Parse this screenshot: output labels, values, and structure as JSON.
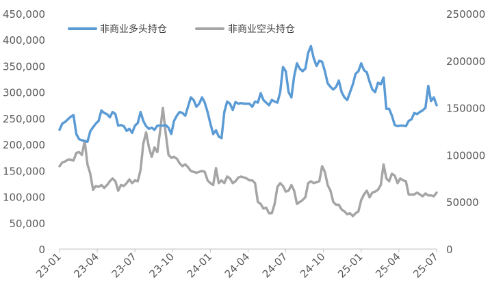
{
  "chart_data": {
    "type": "line",
    "title": "",
    "legend_position": "top-left",
    "grid": false,
    "x": {
      "tick_labels": [
        "23-01",
        "23-04",
        "23-07",
        "23-10",
        "24-01",
        "24-04",
        "24-07",
        "24-10",
        "25-01",
        "25-04",
        "25-07"
      ],
      "range": [
        0,
        135
      ]
    },
    "y_left": {
      "range": [
        0,
        450000
      ],
      "tick_labels": [
        "0",
        "50,000",
        "100,000",
        "150,000",
        "200,000",
        "250,000",
        "300,000",
        "350,000",
        "400,000",
        "450,000"
      ],
      "tick_values": [
        0,
        50000,
        100000,
        150000,
        200000,
        250000,
        300000,
        350000,
        400000,
        450000
      ]
    },
    "y_right": {
      "range": [
        0,
        250000
      ],
      "tick_labels": [
        "0",
        "50000",
        "100000",
        "150000",
        "200000",
        "250000"
      ],
      "tick_values": [
        0,
        50000,
        100000,
        150000,
        200000,
        250000
      ]
    },
    "series": [
      {
        "name": "非商业多头持仓",
        "axis": "left",
        "color": "#5B9BD5",
        "points": [
          [
            0,
            228000
          ],
          [
            1,
            240000
          ],
          [
            2,
            243000
          ],
          [
            3,
            248000
          ],
          [
            4,
            253000
          ],
          [
            5,
            256000
          ],
          [
            6,
            220000
          ],
          [
            7,
            210000
          ],
          [
            8,
            208000
          ],
          [
            9,
            207000
          ],
          [
            10,
            205000
          ],
          [
            11,
            225000
          ],
          [
            12,
            233000
          ],
          [
            13,
            240000
          ],
          [
            14,
            245000
          ],
          [
            15,
            265000
          ],
          [
            16,
            260000
          ],
          [
            17,
            258000
          ],
          [
            18,
            252000
          ],
          [
            19,
            262000
          ],
          [
            20,
            258000
          ],
          [
            21,
            236000
          ],
          [
            22,
            237000
          ],
          [
            23,
            235000
          ],
          [
            24,
            226000
          ],
          [
            25,
            230000
          ],
          [
            26,
            222000
          ],
          [
            27,
            236000
          ],
          [
            28,
            241000
          ],
          [
            29,
            262000
          ],
          [
            30,
            245000
          ],
          [
            31,
            235000
          ],
          [
            32,
            230000
          ],
          [
            33,
            232000
          ],
          [
            34,
            228000
          ],
          [
            35,
            236000
          ],
          [
            36,
            236000
          ],
          [
            37,
            236000
          ],
          [
            38,
            237000
          ],
          [
            39,
            232000
          ],
          [
            40,
            220000
          ],
          [
            41,
            245000
          ],
          [
            42,
            255000
          ],
          [
            43,
            262000
          ],
          [
            44,
            260000
          ],
          [
            45,
            255000
          ],
          [
            46,
            272000
          ],
          [
            47,
            290000
          ],
          [
            48,
            285000
          ],
          [
            49,
            272000
          ],
          [
            50,
            278000
          ],
          [
            51,
            290000
          ],
          [
            52,
            280000
          ],
          [
            53,
            262000
          ],
          [
            54,
            240000
          ],
          [
            55,
            220000
          ],
          [
            56,
            227000
          ],
          [
            57,
            215000
          ],
          [
            58,
            212000
          ],
          [
            59,
            262000
          ],
          [
            60,
            282000
          ],
          [
            61,
            278000
          ],
          [
            62,
            266000
          ],
          [
            63,
            281000
          ],
          [
            64,
            278000
          ],
          [
            65,
            279000
          ],
          [
            66,
            278000
          ],
          [
            67,
            278000
          ],
          [
            68,
            278000
          ],
          [
            69,
            272000
          ],
          [
            70,
            282000
          ],
          [
            71,
            280000
          ],
          [
            72,
            298000
          ],
          [
            73,
            285000
          ],
          [
            74,
            280000
          ],
          [
            75,
            275000
          ],
          [
            76,
            285000
          ],
          [
            77,
            282000
          ],
          [
            78,
            280000
          ],
          [
            79,
            300000
          ],
          [
            80,
            348000
          ],
          [
            81,
            340000
          ],
          [
            82,
            300000
          ],
          [
            83,
            290000
          ],
          [
            84,
            330000
          ],
          [
            85,
            355000
          ],
          [
            86,
            345000
          ],
          [
            87,
            340000
          ],
          [
            88,
            345000
          ],
          [
            89,
            375000
          ],
          [
            90,
            388000
          ],
          [
            91,
            365000
          ],
          [
            92,
            350000
          ],
          [
            93,
            360000
          ],
          [
            94,
            358000
          ],
          [
            95,
            340000
          ],
          [
            96,
            317000
          ],
          [
            97,
            310000
          ],
          [
            98,
            305000
          ],
          [
            99,
            310000
          ],
          [
            100,
            322000
          ],
          [
            101,
            300000
          ],
          [
            102,
            290000
          ],
          [
            103,
            285000
          ],
          [
            104,
            300000
          ],
          [
            105,
            315000
          ],
          [
            106,
            335000
          ],
          [
            107,
            340000
          ],
          [
            108,
            355000
          ],
          [
            109,
            342000
          ],
          [
            110,
            338000
          ],
          [
            111,
            320000
          ],
          [
            112,
            305000
          ],
          [
            113,
            300000
          ],
          [
            114,
            318000
          ],
          [
            115,
            315000
          ],
          [
            116,
            328000
          ],
          [
            117,
            268000
          ],
          [
            118,
            268000
          ],
          [
            119,
            255000
          ],
          [
            120,
            237000
          ],
          [
            121,
            235000
          ],
          [
            122,
            236000
          ],
          [
            123,
            236000
          ],
          [
            124,
            235000
          ],
          [
            125,
            245000
          ],
          [
            126,
            248000
          ],
          [
            127,
            260000
          ],
          [
            128,
            258000
          ],
          [
            129,
            262000
          ],
          [
            130,
            265000
          ],
          [
            131,
            270000
          ],
          [
            132,
            312000
          ],
          [
            133,
            283000
          ],
          [
            134,
            290000
          ],
          [
            135,
            275000
          ]
        ]
      },
      {
        "name": "非商业空头持仓",
        "axis": "right",
        "color": "#A5A5A5",
        "points": [
          [
            0,
            88000
          ],
          [
            1,
            92000
          ],
          [
            2,
            93000
          ],
          [
            3,
            95000
          ],
          [
            4,
            95000
          ],
          [
            5,
            94000
          ],
          [
            6,
            102000
          ],
          [
            7,
            103000
          ],
          [
            8,
            100000
          ],
          [
            9,
            115000
          ],
          [
            10,
            90000
          ],
          [
            11,
            80000
          ],
          [
            12,
            63000
          ],
          [
            13,
            67000
          ],
          [
            14,
            66000
          ],
          [
            15,
            68000
          ],
          [
            16,
            65000
          ],
          [
            17,
            68000
          ],
          [
            18,
            72000
          ],
          [
            19,
            75000
          ],
          [
            20,
            72000
          ],
          [
            21,
            62000
          ],
          [
            22,
            68000
          ],
          [
            23,
            67000
          ],
          [
            24,
            70000
          ],
          [
            25,
            74000
          ],
          [
            26,
            70000
          ],
          [
            27,
            73000
          ],
          [
            28,
            72000
          ],
          [
            29,
            84000
          ],
          [
            30,
            112000
          ],
          [
            31,
            124000
          ],
          [
            32,
            108000
          ],
          [
            33,
            98000
          ],
          [
            34,
            108000
          ],
          [
            35,
            103000
          ],
          [
            36,
            125000
          ],
          [
            37,
            150000
          ],
          [
            38,
            123000
          ],
          [
            39,
            100000
          ],
          [
            40,
            97000
          ],
          [
            41,
            98000
          ],
          [
            42,
            96000
          ],
          [
            43,
            91000
          ],
          [
            44,
            88000
          ],
          [
            45,
            90000
          ],
          [
            46,
            87000
          ],
          [
            47,
            83000
          ],
          [
            48,
            82000
          ],
          [
            49,
            81000
          ],
          [
            50,
            82000
          ],
          [
            51,
            83000
          ],
          [
            52,
            82000
          ],
          [
            53,
            73000
          ],
          [
            54,
            70000
          ],
          [
            55,
            68000
          ],
          [
            56,
            86000
          ],
          [
            57,
            70000
          ],
          [
            58,
            73000
          ],
          [
            59,
            70000
          ],
          [
            60,
            77000
          ],
          [
            61,
            75000
          ],
          [
            62,
            70000
          ],
          [
            63,
            72000
          ],
          [
            64,
            76000
          ],
          [
            65,
            77000
          ],
          [
            66,
            76000
          ],
          [
            67,
            75000
          ],
          [
            68,
            73000
          ],
          [
            69,
            73000
          ],
          [
            70,
            70000
          ],
          [
            71,
            50000
          ],
          [
            72,
            48000
          ],
          [
            73,
            43000
          ],
          [
            74,
            44000
          ],
          [
            75,
            38000
          ],
          [
            76,
            38000
          ],
          [
            77,
            48000
          ],
          [
            78,
            66000
          ],
          [
            79,
            70000
          ],
          [
            80,
            67000
          ],
          [
            81,
            61000
          ],
          [
            82,
            62000
          ],
          [
            83,
            68000
          ],
          [
            84,
            62000
          ],
          [
            85,
            48000
          ],
          [
            86,
            50000
          ],
          [
            87,
            52000
          ],
          [
            88,
            55000
          ],
          [
            89,
            70000
          ],
          [
            90,
            72000
          ],
          [
            91,
            70000
          ],
          [
            92,
            71000
          ],
          [
            93,
            72000
          ],
          [
            94,
            88000
          ],
          [
            95,
            82000
          ],
          [
            96,
            68000
          ],
          [
            97,
            62000
          ],
          [
            98,
            50000
          ],
          [
            99,
            47000
          ],
          [
            100,
            47000
          ],
          [
            101,
            42000
          ],
          [
            102,
            40000
          ],
          [
            103,
            37000
          ],
          [
            104,
            38000
          ],
          [
            105,
            35000
          ],
          [
            106,
            38000
          ],
          [
            107,
            40000
          ],
          [
            108,
            52000
          ],
          [
            109,
            58000
          ],
          [
            110,
            62000
          ],
          [
            111,
            55000
          ],
          [
            112,
            60000
          ],
          [
            113,
            61000
          ],
          [
            114,
            63000
          ],
          [
            115,
            68000
          ],
          [
            116,
            90000
          ],
          [
            117,
            75000
          ],
          [
            118,
            72000
          ],
          [
            119,
            80000
          ],
          [
            120,
            78000
          ],
          [
            121,
            70000
          ],
          [
            122,
            75000
          ],
          [
            123,
            73000
          ],
          [
            124,
            72000
          ],
          [
            125,
            58000
          ],
          [
            126,
            58000
          ],
          [
            127,
            58000
          ],
          [
            128,
            60000
          ],
          [
            129,
            58000
          ],
          [
            130,
            56000
          ],
          [
            131,
            59000
          ],
          [
            132,
            57000
          ],
          [
            133,
            57000
          ],
          [
            134,
            56000
          ],
          [
            135,
            60000
          ]
        ]
      }
    ]
  }
}
